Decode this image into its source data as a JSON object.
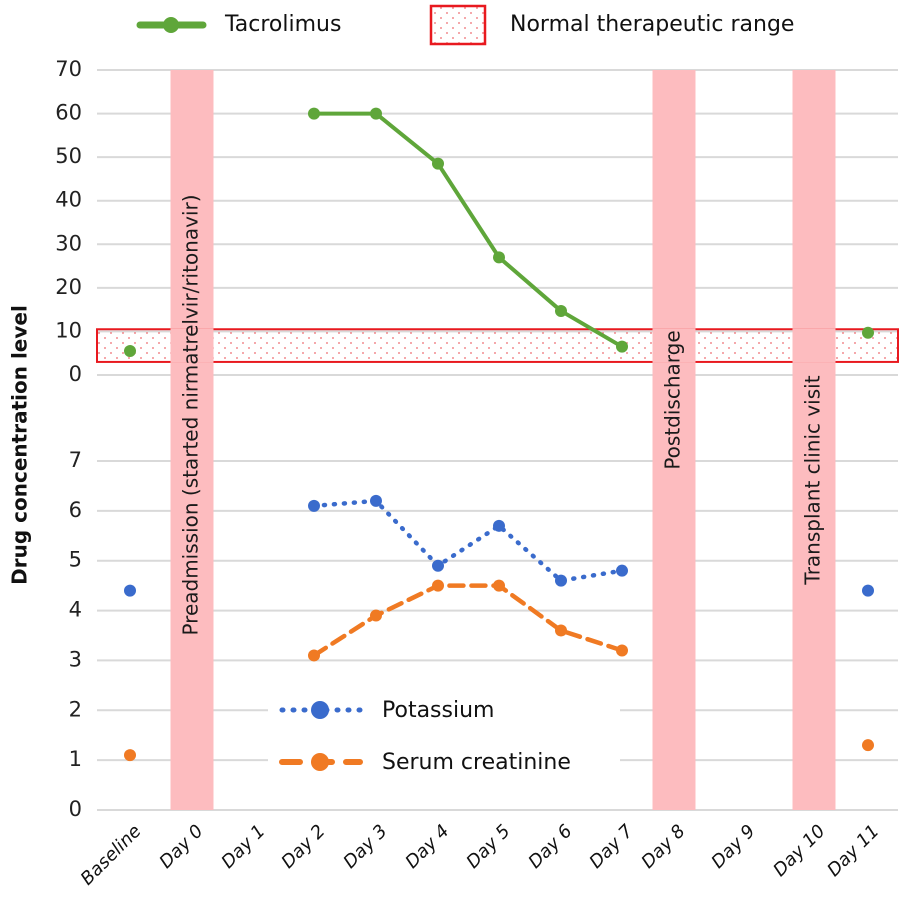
{
  "chart_data": {
    "type": "line",
    "ylabel": "Drug concentration level",
    "categories": [
      "Baseline",
      "Day 0",
      "Day 1",
      "Day 2",
      "Day 3",
      "Day 4",
      "Day 5",
      "Day 6",
      "Day 7",
      "Day 8",
      "Day 9",
      "Day 10",
      "Day 11"
    ],
    "legend_top": [
      {
        "name": "Tacrolimus",
        "kind": "line-marker",
        "color": "#5fa63a"
      },
      {
        "name": "Normal therapeutic range",
        "kind": "band",
        "color": "#e8191f"
      }
    ],
    "legend_bottom": [
      {
        "name": "Potassium",
        "kind": "dotted-marker",
        "color": "#3a6bcc"
      },
      {
        "name": "Serum creatinine",
        "kind": "dashed-marker",
        "color": "#f07a23"
      }
    ],
    "upper_panel": {
      "ylim": [
        0,
        70
      ],
      "yticks": [
        0,
        10,
        20,
        30,
        40,
        50,
        60,
        70
      ],
      "grid": true,
      "therapeutic_range": [
        3,
        10.5
      ],
      "series": [
        {
          "name": "Tacrolimus",
          "color": "#5fa63a",
          "style": "solid",
          "values": [
            5.5,
            null,
            null,
            60,
            60,
            48.5,
            27,
            14.7,
            6.5,
            null,
            null,
            null,
            9.7
          ]
        }
      ]
    },
    "lower_panel": {
      "ylim": [
        0,
        7
      ],
      "yticks": [
        0,
        1,
        2,
        3,
        4,
        5,
        6,
        7
      ],
      "grid": true,
      "series": [
        {
          "name": "Potassium",
          "color": "#3a6bcc",
          "style": "dotted",
          "values": [
            4.4,
            null,
            null,
            6.1,
            6.2,
            4.9,
            5.7,
            4.6,
            4.8,
            null,
            null,
            null,
            4.4
          ]
        },
        {
          "name": "Serum creatinine",
          "color": "#f07a23",
          "style": "dashed",
          "values": [
            1.1,
            null,
            null,
            3.1,
            3.9,
            4.5,
            4.5,
            3.6,
            3.2,
            null,
            null,
            null,
            1.3
          ]
        }
      ]
    },
    "event_bands": [
      {
        "category": "Day 0",
        "label": "Preadmission (started nirmatrelvir/ritonavir)"
      },
      {
        "category": "Day 8",
        "label": "Postdischarge"
      },
      {
        "category": "Day 10",
        "label": "Transplant clinic visit"
      }
    ],
    "band_color": "#fdbcbf",
    "grid_color": "#d9d9d9"
  }
}
